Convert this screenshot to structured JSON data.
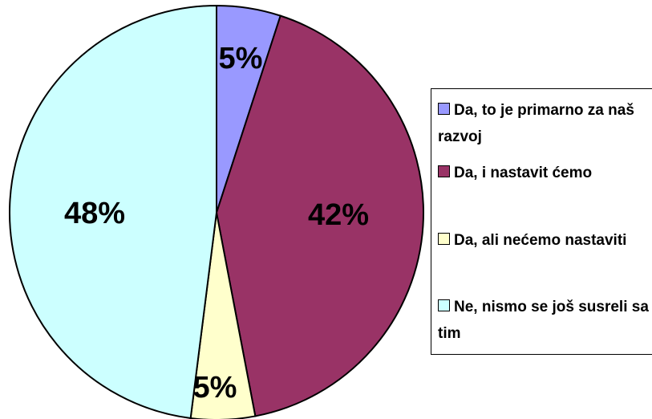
{
  "chart_data": {
    "type": "pie",
    "slices": [
      {
        "label": "Da, to je primarno za naš razvoj",
        "value": 5,
        "display": "5%",
        "color": "#9999FF"
      },
      {
        "label": "Da, i nastavit ćemo",
        "value": 42,
        "display": "42%",
        "color": "#993366"
      },
      {
        "label": "Da, ali nećemo nastaviti",
        "value": 5,
        "display": "5%",
        "color": "#FFFFCC"
      },
      {
        "label": "Ne, nismo se još susreli sa tim",
        "value": 48,
        "display": "48%",
        "color": "#CCFFFF"
      }
    ],
    "legend_position": "right",
    "start_angle": "12 o'clock",
    "direction": "clockwise"
  }
}
